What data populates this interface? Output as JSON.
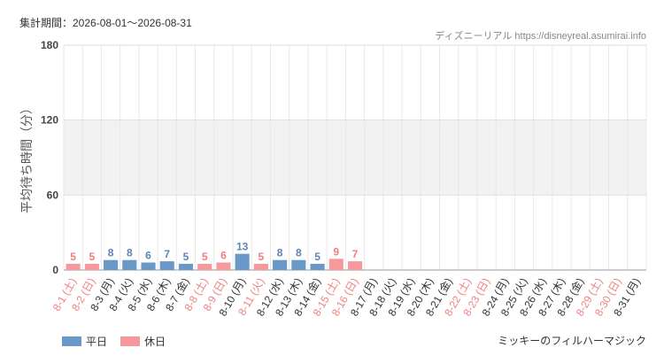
{
  "chart_data": {
    "type": "bar",
    "title": "集計期間：2026-08-01～2026-08-31",
    "source": "ディズニーリアル https://disneyreal.asumirai.info",
    "y_label": "平均待ち時間（分）",
    "attraction": "ミッキーのフィルハーマジック",
    "categories": [
      "8-1 (土)",
      "8-2 (日)",
      "8-3 (月)",
      "8-4 (火)",
      "8-5 (水)",
      "8-6 (木)",
      "8-7 (金)",
      "8-8 (土)",
      "8-9 (日)",
      "8-10 (月)",
      "8-11 (火)",
      "8-12 (水)",
      "8-13 (木)",
      "8-14 (金)",
      "8-15 (土)",
      "8-16 (日)",
      "8-17 (月)",
      "8-18 (火)",
      "8-19 (水)",
      "8-20 (木)",
      "8-21 (金)",
      "8-22 (土)",
      "8-23 (日)",
      "8-24 (月)",
      "8-25 (火)",
      "8-26 (水)",
      "8-27 (木)",
      "8-28 (金)",
      "8-29 (土)",
      "8-30 (日)",
      "8-31 (月)"
    ],
    "category_colors": [
      "#f08080",
      "#f08080",
      "#333",
      "#333",
      "#333",
      "#333",
      "#333",
      "#f08080",
      "#f08080",
      "#333",
      "#f08080",
      "#333",
      "#333",
      "#333",
      "#f08080",
      "#f08080",
      "#333",
      "#333",
      "#333",
      "#333",
      "#333",
      "#f08080",
      "#f08080",
      "#333",
      "#333",
      "#333",
      "#333",
      "#333",
      "#f08080",
      "#f08080",
      "#333"
    ],
    "series": [
      {
        "name": "平日",
        "color": "#6a98c8",
        "label_color": "#5a85b5",
        "values": [
          null,
          null,
          8,
          8,
          6,
          7,
          5,
          null,
          null,
          13,
          null,
          8,
          8,
          5,
          null,
          null,
          null,
          null,
          null,
          null,
          null,
          null,
          null,
          null,
          null,
          null,
          null,
          null,
          null,
          null,
          null
        ]
      },
      {
        "name": "休日",
        "color": "#f7999c",
        "label_color": "#f07c80",
        "values": [
          5,
          5,
          null,
          null,
          null,
          null,
          null,
          5,
          6,
          null,
          5,
          null,
          null,
          null,
          9,
          7,
          null,
          null,
          null,
          null,
          null,
          null,
          null,
          null,
          null,
          null,
          null,
          null,
          null,
          null,
          null
        ]
      }
    ],
    "ylim": [
      0,
      180
    ],
    "yticks": [
      0,
      60,
      120,
      180
    ],
    "grid": true
  }
}
